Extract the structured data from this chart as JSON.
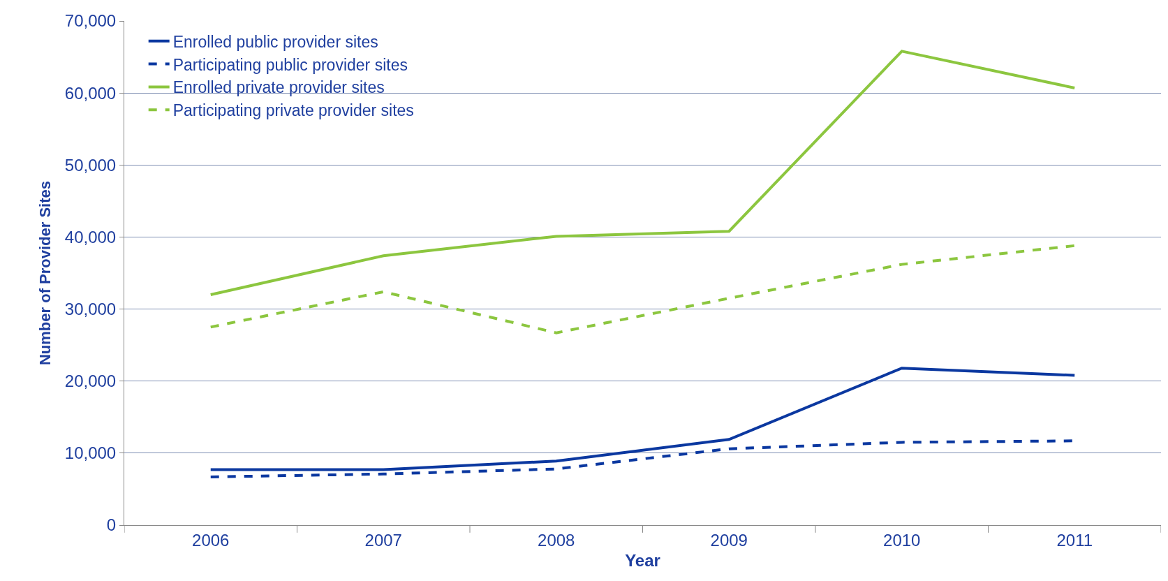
{
  "chart_data": {
    "type": "line",
    "xlabel": "Year",
    "ylabel": "Number of Provider Sites",
    "categories": [
      "2006",
      "2007",
      "2008",
      "2009",
      "2010",
      "2011"
    ],
    "series": [
      {
        "name": "Enrolled public provider sites",
        "color": "#0b38a0",
        "line_style": "solid",
        "values": [
          7700,
          7700,
          8900,
          11900,
          21800,
          20800
        ]
      },
      {
        "name": "Participating public provider sites",
        "color": "#0b38a0",
        "line_style": "dashed",
        "values": [
          6700,
          7100,
          7800,
          10600,
          11500,
          11700
        ]
      },
      {
        "name": "Enrolled private provider sites",
        "color": "#8cc63f",
        "line_style": "solid",
        "values": [
          32000,
          37400,
          40100,
          40800,
          65800,
          60700
        ]
      },
      {
        "name": "Participating private provider sites",
        "color": "#8cc63f",
        "line_style": "dashed",
        "values": [
          27500,
          32400,
          26700,
          31500,
          36200,
          38800
        ]
      }
    ],
    "ylim": [
      0,
      70000
    ],
    "yticks": [
      {
        "value": 0,
        "label": "0"
      },
      {
        "value": 10000,
        "label": "10,000"
      },
      {
        "value": 20000,
        "label": "20,000"
      },
      {
        "value": 30000,
        "label": "30,000"
      },
      {
        "value": 40000,
        "label": "40,000"
      },
      {
        "value": 50000,
        "label": "50,000"
      },
      {
        "value": 60000,
        "label": "60,000"
      },
      {
        "value": 70000,
        "label": "70,000"
      }
    ],
    "grid": "y",
    "legend": "top left",
    "marker": "none"
  }
}
